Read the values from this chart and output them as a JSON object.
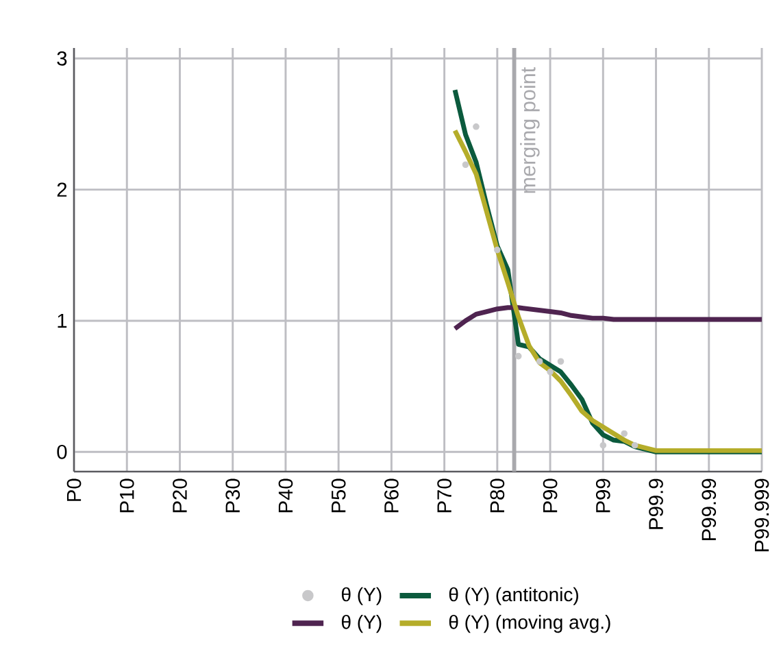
{
  "chart_data": {
    "type": "line",
    "categories": [
      "P0",
      null,
      null,
      null,
      null,
      "P10",
      null,
      null,
      null,
      null,
      "P20",
      null,
      null,
      null,
      null,
      "P30",
      null,
      null,
      null,
      null,
      "P40",
      null,
      null,
      null,
      null,
      "P50",
      null,
      null,
      null,
      null,
      "P60",
      null,
      null,
      null,
      null,
      "P70",
      null,
      null,
      null,
      null,
      "P80",
      null,
      null,
      null,
      null,
      "P90",
      null,
      null,
      null,
      null,
      "P99",
      null,
      null,
      null,
      null,
      "P99.9",
      null,
      null,
      null,
      null,
      "P99.99",
      null,
      null,
      null,
      null,
      "P99.999"
    ],
    "ylim": [
      -0.15,
      3.08
    ],
    "yticks": [
      0,
      1,
      2,
      3
    ],
    "grid": true,
    "legend": "bottom",
    "annotations": [
      "merging point"
    ],
    "series": [
      {
        "name": "θ (Y)",
        "type": "scatter",
        "marker": "circle",
        "color": "#c8c8ca",
        "values": [
          null,
          null,
          null,
          null,
          null,
          null,
          null,
          null,
          null,
          null,
          null,
          null,
          null,
          null,
          null,
          null,
          null,
          null,
          null,
          null,
          null,
          null,
          null,
          null,
          null,
          null,
          null,
          null,
          null,
          null,
          null,
          null,
          null,
          null,
          null,
          null,
          null,
          2.19,
          2.48,
          null,
          1.54,
          null,
          0.73,
          null,
          0.69,
          0.61,
          0.69,
          null,
          null,
          null,
          0.05,
          null,
          0.14,
          0.05,
          null,
          null,
          null,
          null,
          null,
          null,
          null,
          null,
          null,
          null,
          null,
          null
        ]
      },
      {
        "name": "θ (Y) (antitonic)",
        "color": "#0b5a3d",
        "values": [
          null,
          null,
          null,
          null,
          null,
          null,
          null,
          null,
          null,
          null,
          null,
          null,
          null,
          null,
          null,
          null,
          null,
          null,
          null,
          null,
          null,
          null,
          null,
          null,
          null,
          null,
          null,
          null,
          null,
          null,
          null,
          null,
          null,
          null,
          null,
          null,
          2.76,
          2.42,
          2.21,
          1.88,
          1.57,
          1.39,
          0.82,
          0.8,
          0.71,
          0.66,
          0.61,
          0.51,
          0.4,
          0.22,
          0.13,
          0.09,
          0.08,
          0.04,
          0.02,
          0,
          0,
          0,
          0,
          0,
          0,
          0,
          0,
          0,
          0,
          0
        ]
      },
      {
        "name": "θ (Y)",
        "color": "#4f2450",
        "values": [
          null,
          null,
          null,
          null,
          null,
          null,
          null,
          null,
          null,
          null,
          null,
          null,
          null,
          null,
          null,
          null,
          null,
          null,
          null,
          null,
          null,
          null,
          null,
          null,
          null,
          null,
          null,
          null,
          null,
          null,
          null,
          null,
          null,
          null,
          null,
          null,
          0.94,
          1.0,
          1.05,
          1.07,
          1.09,
          1.1,
          1.1,
          1.09,
          1.08,
          1.07,
          1.06,
          1.04,
          1.03,
          1.02,
          1.02,
          1.01,
          1.01,
          1.01,
          1.01,
          1.01,
          1.01,
          1.01,
          1.01,
          1.01,
          1.01,
          1.01,
          1.01,
          1.01,
          1.01,
          1.01
        ]
      },
      {
        "name": "θ (Y) (moving avg.)",
        "color": "#b5ad2a",
        "values": [
          null,
          null,
          null,
          null,
          null,
          null,
          null,
          null,
          null,
          null,
          null,
          null,
          null,
          null,
          null,
          null,
          null,
          null,
          null,
          null,
          null,
          null,
          null,
          null,
          null,
          null,
          null,
          null,
          null,
          null,
          null,
          null,
          null,
          null,
          null,
          null,
          2.45,
          2.29,
          2.12,
          1.83,
          1.54,
          1.29,
          1.03,
          0.81,
          0.68,
          0.62,
          0.54,
          0.43,
          0.31,
          0.24,
          0.19,
          0.14,
          0.09,
          0.05,
          0.03,
          0.01,
          0.01,
          0.01,
          0.01,
          0.01,
          0.01,
          0.01,
          0.01,
          0.01,
          0.01,
          0.01
        ]
      }
    ]
  }
}
